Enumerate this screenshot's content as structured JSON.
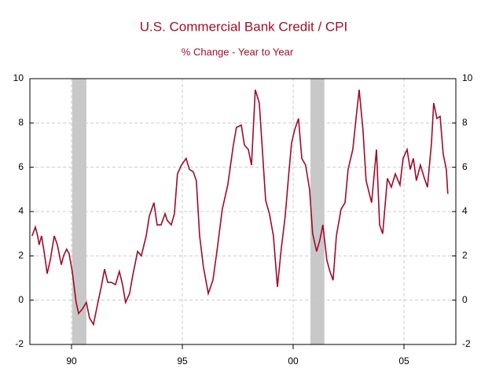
{
  "chart_data": {
    "type": "line",
    "title": "U.S. Commercial Bank Credit / CPI",
    "subtitle": "% Change - Year to Year",
    "color": "#a00a28",
    "shade_color": "#c8c8c8",
    "grid": true,
    "x": [
      1988.72,
      1988.87,
      1988.97,
      1989.04,
      1989.15,
      1989.29,
      1989.4,
      1989.54,
      1989.72,
      1989.86,
      1990.04,
      1990.14,
      1990.28,
      1990.39,
      1990.53,
      1990.71,
      1990.82,
      1990.99,
      1991.17,
      1991.31,
      1991.49,
      1991.67,
      1991.84,
      1991.99,
      1992.13,
      1992.3,
      1992.48,
      1992.66,
      1992.8,
      1992.94,
      1993.12,
      1993.26,
      1993.48,
      1993.65,
      1993.87,
      1994.01,
      1994.22,
      1994.36,
      1994.54,
      1994.72,
      1994.82,
      1995.0,
      1995.14,
      1995.28,
      1995.46,
      1995.67,
      1995.82,
      1995.99,
      1996.13,
      1996.28,
      1996.45,
      1996.67,
      1996.88,
      1997.06,
      1997.3,
      1997.55,
      1997.8,
      1997.94,
      1998.16,
      1998.3,
      1998.48,
      1998.62,
      1998.79,
      1998.97,
      1999.11,
      1999.26,
      1999.43,
      1999.61,
      1999.79,
      1999.96,
      2000.14,
      2000.32,
      2000.43,
      2000.57,
      2000.74,
      2000.89,
      2001.06,
      2001.24,
      2001.38,
      2001.56,
      2001.7,
      2001.84,
      2002.02,
      2002.16,
      2002.3,
      2002.45,
      2002.66,
      2002.84,
      2002.98,
      2003.19,
      2003.37,
      2003.48,
      2003.65,
      2003.79,
      2004.04,
      2004.26,
      2004.4,
      2004.54,
      2004.75,
      2004.93,
      2005.11,
      2005.32,
      2005.46,
      2005.64,
      2005.78,
      2005.92,
      2006.06,
      2006.24,
      2006.42,
      2006.56,
      2006.74,
      2006.84,
      2006.99,
      2007.13,
      2007.27,
      2007.41,
      2007.48
    ],
    "values": [
      2.9,
      3.3,
      2.9,
      2.5,
      2.9,
      2.0,
      1.2,
      1.8,
      2.9,
      2.5,
      1.6,
      2.0,
      2.3,
      2.1,
      1.3,
      -0.1,
      -0.6,
      -0.4,
      -0.1,
      -0.8,
      -1.1,
      -0.2,
      0.6,
      1.4,
      0.8,
      0.8,
      0.7,
      1.3,
      0.7,
      -0.1,
      0.3,
      1.1,
      2.2,
      2.0,
      2.9,
      3.8,
      4.4,
      3.4,
      3.4,
      3.9,
      3.6,
      3.4,
      3.9,
      5.7,
      6.1,
      6.4,
      5.9,
      5.8,
      5.4,
      2.9,
      1.5,
      0.3,
      0.9,
      2.2,
      4.1,
      5.2,
      7.0,
      7.8,
      7.9,
      7.0,
      6.8,
      6.1,
      9.5,
      8.9,
      6.8,
      4.5,
      3.9,
      2.9,
      0.6,
      2.3,
      3.8,
      5.9,
      7.1,
      7.7,
      8.2,
      6.4,
      6.1,
      5.0,
      3.0,
      2.2,
      2.7,
      3.4,
      1.8,
      1.3,
      0.9,
      2.9,
      4.1,
      4.4,
      5.9,
      6.8,
      8.5,
      9.5,
      7.7,
      5.4,
      4.4,
      6.8,
      3.4,
      3.0,
      5.5,
      5.1,
      5.7,
      5.2,
      6.4,
      6.8,
      5.9,
      6.4,
      5.4,
      6.1,
      5.5,
      5.1,
      7.1,
      8.9,
      8.2,
      8.3,
      6.6,
      5.9,
      4.8
    ],
    "shaded_ranges": [
      [
        1990.53,
        1991.17
      ],
      [
        2001.28,
        2001.91
      ]
    ],
    "xlim": [
      1988.62,
      2007.84
    ],
    "xticks": [
      {
        "value": 1990.5,
        "label": "90"
      },
      {
        "value": 1995.5,
        "label": "95"
      },
      {
        "value": 2000.5,
        "label": "00"
      },
      {
        "value": 2005.5,
        "label": "05"
      }
    ],
    "ylim": [
      -2,
      10
    ],
    "yticks": [
      -2,
      0,
      2,
      4,
      6,
      8,
      10
    ],
    "y2lim": [
      -2,
      10
    ],
    "y2ticks": [
      -2,
      0,
      2,
      4,
      6,
      8,
      10
    ]
  }
}
